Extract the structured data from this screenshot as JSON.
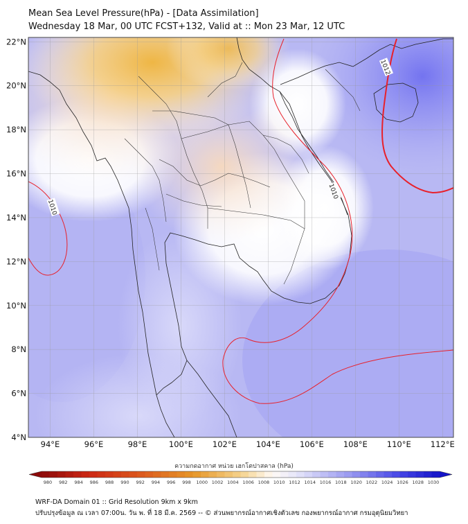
{
  "title": {
    "line1": "Mean Sea Level Pressure(hPa) - [Data Assimilation]",
    "line2": "Wednesday 18 Mar, 00 UTC FCST+132, Valid at :: Mon 23 Mar, 12 UTC"
  },
  "map": {
    "lon_range": [
      93,
      112.5
    ],
    "lat_range": [
      4,
      22.2
    ],
    "lat_ticks": [
      "4°N",
      "6°N",
      "8°N",
      "10°N",
      "12°N",
      "14°N",
      "16°N",
      "18°N",
      "20°N",
      "22°N"
    ],
    "lon_ticks": [
      "94°E",
      "96°E",
      "98°E",
      "100°E",
      "102°E",
      "104°E",
      "106°E",
      "108°E",
      "110°E",
      "112°E"
    ],
    "isobar_labels": [
      "1010",
      "1010",
      "1012"
    ],
    "isobar_color": "#e8202a",
    "high_pressure_color": "#3b3be6",
    "low_pressure_color": "#e9a521"
  },
  "colorbar": {
    "label": "ความกดอากาศ หน่วย เฮกโตปาสคาล (hPa)",
    "ticks": [
      "980",
      "982",
      "984",
      "986",
      "988",
      "990",
      "992",
      "994",
      "996",
      "998",
      "1000",
      "1002",
      "1004",
      "1006",
      "1008",
      "1010",
      "1012",
      "1014",
      "1016",
      "1018",
      "1020",
      "1022",
      "1024",
      "1026",
      "1028",
      "1030"
    ]
  },
  "footer": {
    "line1": "WRF-DA Domain 01 :: Grid Resolution 9km x 9km",
    "line2": "ปรับปรุงข้อมูล ณ เวลา 07:00น. วัน พ. ที่ 18 มี.ค. 2569 -- © ส่วนพยากรณ์อากาศเชิงตัวเลข กองพยากรณ์อากาศ กรมอุตุนิยมวิทยา"
  }
}
